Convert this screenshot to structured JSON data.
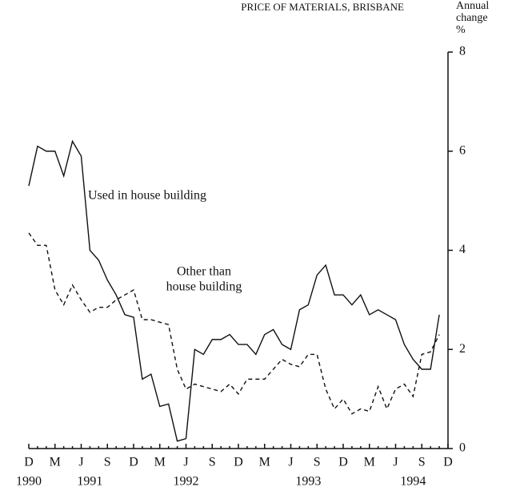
{
  "chart_data": {
    "type": "line",
    "title": "PRICE OF MATERIALS, BRISBANE",
    "y_axis_label": [
      "Annual",
      "change",
      "%"
    ],
    "categories": [
      "D",
      null,
      null,
      "M",
      null,
      null,
      "J",
      null,
      null,
      "S",
      null,
      null,
      "D",
      null,
      null,
      "M",
      null,
      null,
      "J",
      null,
      null,
      "S",
      null,
      null,
      "D",
      null,
      null,
      "M",
      null,
      null,
      "J",
      null,
      null,
      "S",
      null,
      null,
      "D",
      null,
      null,
      "M",
      null,
      null,
      "J",
      null,
      null,
      "S",
      null,
      null,
      "D"
    ],
    "years": [
      "1990",
      "1991",
      "1992",
      "1993",
      "1994"
    ],
    "series": [
      {
        "name": "Used in house building",
        "color": "#111111",
        "dash": false,
        "values": [
          5.3,
          6.1,
          6.0,
          6.0,
          5.5,
          6.2,
          5.9,
          4.0,
          3.8,
          3.4,
          3.1,
          2.7,
          2.65,
          1.4,
          1.5,
          0.85,
          0.9,
          0.15,
          0.2,
          2.0,
          1.9,
          2.2,
          2.2,
          2.3,
          2.1,
          2.1,
          1.9,
          2.3,
          2.4,
          2.1,
          2.0,
          2.8,
          2.9,
          3.5,
          3.7,
          3.1,
          3.1,
          2.9,
          3.1,
          2.7,
          2.8,
          2.7,
          2.6,
          2.1,
          1.8,
          1.6,
          1.6,
          2.7,
          null
        ]
      },
      {
        "name": "Other than house building",
        "color": "#111111",
        "dash": true,
        "values": [
          4.35,
          4.1,
          4.1,
          3.2,
          2.9,
          3.3,
          3.0,
          2.75,
          2.85,
          2.85,
          3.0,
          3.1,
          3.2,
          2.6,
          2.6,
          2.55,
          2.5,
          1.6,
          1.2,
          1.3,
          1.25,
          1.2,
          1.15,
          1.3,
          1.1,
          1.4,
          1.4,
          1.4,
          1.6,
          1.8,
          1.7,
          1.65,
          1.9,
          1.9,
          1.2,
          0.8,
          1.0,
          0.7,
          0.8,
          0.75,
          1.25,
          0.8,
          1.2,
          1.3,
          1.05,
          1.9,
          1.95,
          2.3,
          null
        ]
      }
    ],
    "annotations": [
      [
        "Used in house building"
      ],
      [
        "Other than",
        "house building"
      ]
    ],
    "ylim": [
      0,
      8
    ],
    "yticks": [
      0,
      2,
      4,
      6,
      8
    ]
  }
}
